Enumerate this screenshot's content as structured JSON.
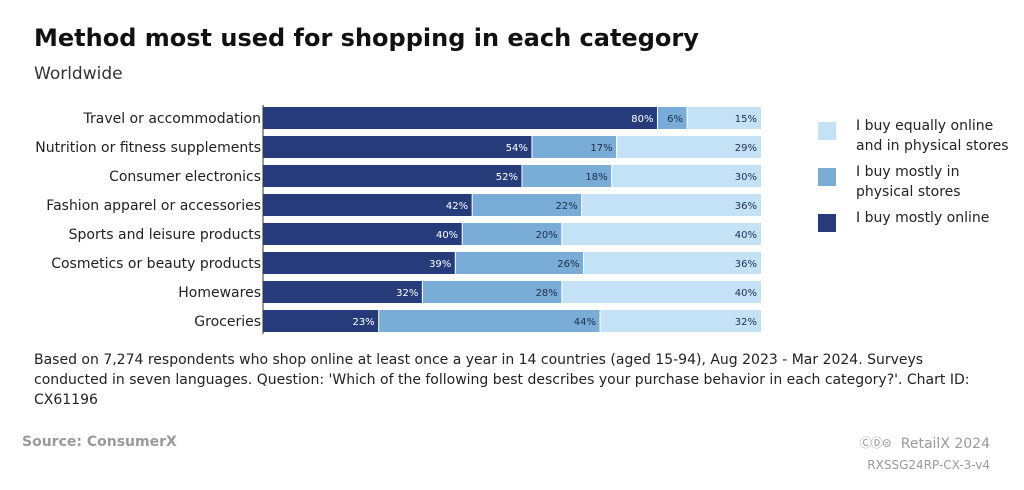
{
  "header": {
    "title": "Method most used for shopping in each category",
    "subtitle": "Worldwide"
  },
  "colors": {
    "online": "#263c7a",
    "physical": "#79acd6",
    "equal": "#c3e2f6"
  },
  "chart_data": {
    "type": "bar",
    "orientation": "horizontal",
    "stacked": true,
    "categories": [
      "Travel or accommodation",
      "Nutrition or fitness supplements",
      "Consumer electronics",
      "Fashion apparel or accessories",
      "Sports and leisure products",
      "Cosmetics or beauty products",
      "Homewares",
      "Groceries"
    ],
    "series": [
      {
        "name": "I buy mostly online",
        "color": "#263c7a",
        "values": [
          80,
          54,
          52,
          42,
          40,
          39,
          32,
          23
        ]
      },
      {
        "name": "I buy mostly in physical stores",
        "color": "#79acd6",
        "values": [
          6,
          17,
          18,
          22,
          20,
          26,
          28,
          44
        ]
      },
      {
        "name": "I buy equally online and in physical stores",
        "color": "#c3e2f6",
        "values": [
          15,
          29,
          30,
          36,
          40,
          36,
          40,
          32
        ]
      }
    ],
    "value_suffix": "%",
    "legend_position": "right",
    "grid": false
  },
  "legend": {
    "items": [
      {
        "label": "I buy equally online and in physical stores",
        "color": "#c3e2f6"
      },
      {
        "label": "I buy mostly in physical stores",
        "color": "#79acd6"
      },
      {
        "label": "I buy mostly online",
        "color": "#263c7a"
      }
    ]
  },
  "footer": {
    "note": "Based on 7,274 respondents who shop online at least once a year in 14 countries (aged 15-94), Aug 2023 - Mar 2024. Surveys conducted in seven languages. Question: 'Which of the following best describes your purchase behavior in each category?'. Chart ID: CX61196",
    "source": "Source: ConsumerX",
    "brand": "RetailX 2024",
    "chart_code": "RXSSG24RP-CX-3-v4",
    "license_icons": "cc-by-nd-icons"
  }
}
